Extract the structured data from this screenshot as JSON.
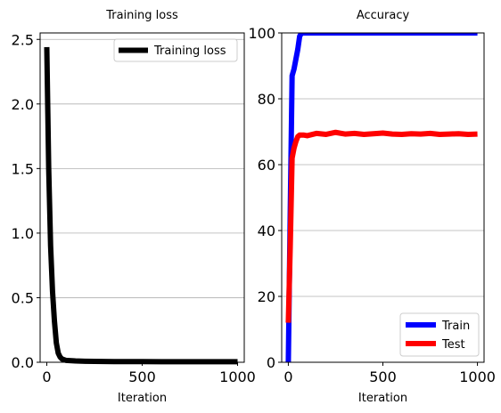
{
  "chart_data": [
    {
      "type": "line",
      "title": "Training loss",
      "xlabel": "Iteration",
      "ylabel": "",
      "xlim": [
        -35,
        1035
      ],
      "ylim": [
        0,
        2.55
      ],
      "xticks": [
        0,
        500,
        1000
      ],
      "xtick_labels": [
        "0",
        "500",
        "1000"
      ],
      "yticks": [
        0.0,
        0.5,
        1.0,
        1.5,
        2.0,
        2.5
      ],
      "ytick_labels": [
        "0.0",
        "0.5",
        "1.0",
        "1.5",
        "2.0",
        "2.5"
      ],
      "grid": "y",
      "legend_position": "top-right",
      "series": [
        {
          "name": "Training loss",
          "color": "#000000",
          "x": [
            0,
            10,
            20,
            30,
            40,
            50,
            60,
            70,
            80,
            100,
            150,
            200,
            300,
            400,
            500,
            600,
            700,
            800,
            900,
            1000
          ],
          "y": [
            2.44,
            1.5,
            0.9,
            0.55,
            0.32,
            0.15,
            0.07,
            0.04,
            0.025,
            0.015,
            0.01,
            0.008,
            0.006,
            0.005,
            0.005,
            0.004,
            0.004,
            0.004,
            0.004,
            0.004
          ]
        }
      ]
    },
    {
      "type": "line",
      "title": "Accuracy",
      "xlabel": "Iteration",
      "ylabel": "",
      "xlim": [
        -35,
        1035
      ],
      "ylim": [
        0,
        100
      ],
      "xticks": [
        0,
        500,
        1000
      ],
      "xtick_labels": [
        "0",
        "500",
        "1000"
      ],
      "yticks": [
        0,
        20,
        40,
        60,
        80,
        100
      ],
      "ytick_labels": [
        "0",
        "20",
        "40",
        "60",
        "80",
        "100"
      ],
      "grid": "y",
      "legend_position": "bottom-right",
      "series": [
        {
          "name": "Train",
          "color": "#0000ff",
          "x": [
            0,
            10,
            20,
            30,
            40,
            50,
            60,
            70,
            100,
            200,
            300,
            400,
            500,
            600,
            700,
            800,
            900,
            1000
          ],
          "y": [
            0,
            45,
            87,
            89,
            92,
            95,
            99,
            100,
            100,
            100,
            100,
            100,
            100,
            100,
            100,
            100,
            100,
            100
          ]
        },
        {
          "name": "Test",
          "color": "#ff0000",
          "x": [
            0,
            10,
            20,
            30,
            40,
            50,
            60,
            80,
            100,
            150,
            200,
            250,
            300,
            350,
            400,
            450,
            500,
            550,
            600,
            650,
            700,
            750,
            800,
            850,
            900,
            950,
            1000
          ],
          "y": [
            12,
            35,
            62,
            65,
            67,
            68.5,
            69,
            69,
            68.8,
            69.5,
            69.2,
            69.8,
            69.3,
            69.5,
            69.2,
            69.4,
            69.6,
            69.3,
            69.2,
            69.4,
            69.3,
            69.5,
            69.2,
            69.3,
            69.4,
            69.2,
            69.3
          ]
        }
      ]
    }
  ]
}
